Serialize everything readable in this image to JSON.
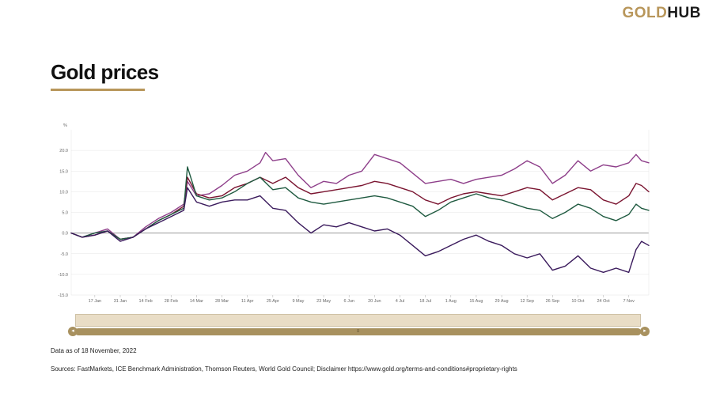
{
  "header": {
    "brand_gold": "GOLD",
    "brand_hub": "HUB",
    "title": "Gold prices"
  },
  "footer": {
    "as_of": "Data as of 18 November, 2022",
    "sources": "Sources: FastMarkets, ICE Benchmark Administration, Thomson Reuters, World Gold Council; Disclaimer https://www.gold.org/terms-and-conditions#proprietary-rights"
  },
  "colors": {
    "accent": "#b8965a",
    "series": [
      "#8e3f8a",
      "#7a1430",
      "#1f5a40",
      "#3a1a5c"
    ]
  },
  "chart_data": {
    "type": "line",
    "ylabel": "%",
    "ylim": [
      -15,
      25
    ],
    "yticks": [
      -15,
      -10,
      -5,
      0,
      5,
      10,
      15,
      20
    ],
    "ytick_labels": [
      "-15.0",
      "-10.0",
      "-5.0",
      "0.0",
      "5.0",
      "10.0",
      "15.0",
      "20.0"
    ],
    "date_range": [
      "2022-01-04",
      "2022-11-18"
    ],
    "xticks": [
      "2022-01-17",
      "2022-01-31",
      "2022-02-14",
      "2022-02-28",
      "2022-03-14",
      "2022-03-28",
      "2022-04-11",
      "2022-04-25",
      "2022-05-09",
      "2022-05-23",
      "2022-06-06",
      "2022-06-20",
      "2022-07-04",
      "2022-07-18",
      "2022-08-01",
      "2022-08-15",
      "2022-08-29",
      "2022-09-12",
      "2022-09-26",
      "2022-10-10",
      "2022-10-24",
      "2022-11-07"
    ],
    "xtick_labels": [
      "17 Jan",
      "31 Jan",
      "14 Feb",
      "28 Feb",
      "14 Mar",
      "28 Mar",
      "11 Apr",
      "25 Apr",
      "9 May",
      "23 May",
      "6 Jun",
      "20 Jun",
      "4 Jul",
      "18 Jul",
      "1 Aug",
      "15 Aug",
      "29 Aug",
      "12 Sep",
      "26 Sep",
      "10 Oct",
      "24 Oct",
      "7 Nov"
    ],
    "grid": true,
    "series": [
      {
        "color": "#8e3f8a",
        "points": [
          [
            "2022-01-04",
            0
          ],
          [
            "2022-01-10",
            -1
          ],
          [
            "2022-01-17",
            0
          ],
          [
            "2022-01-24",
            1
          ],
          [
            "2022-01-31",
            -1.5
          ],
          [
            "2022-02-07",
            -1
          ],
          [
            "2022-02-14",
            1.5
          ],
          [
            "2022-02-21",
            3.5
          ],
          [
            "2022-02-28",
            5
          ],
          [
            "2022-03-07",
            7
          ],
          [
            "2022-03-09",
            12.5
          ],
          [
            "2022-03-14",
            9
          ],
          [
            "2022-03-21",
            9.5
          ],
          [
            "2022-03-28",
            11.5
          ],
          [
            "2022-04-04",
            14
          ],
          [
            "2022-04-11",
            15
          ],
          [
            "2022-04-18",
            17
          ],
          [
            "2022-04-21",
            19.5
          ],
          [
            "2022-04-25",
            17.5
          ],
          [
            "2022-05-02",
            18
          ],
          [
            "2022-05-09",
            14
          ],
          [
            "2022-05-16",
            11
          ],
          [
            "2022-05-23",
            12.5
          ],
          [
            "2022-05-30",
            12
          ],
          [
            "2022-06-06",
            14
          ],
          [
            "2022-06-13",
            15
          ],
          [
            "2022-06-20",
            19
          ],
          [
            "2022-06-27",
            18
          ],
          [
            "2022-07-04",
            17
          ],
          [
            "2022-07-11",
            14.5
          ],
          [
            "2022-07-18",
            12
          ],
          [
            "2022-07-25",
            12.5
          ],
          [
            "2022-08-01",
            13
          ],
          [
            "2022-08-08",
            12
          ],
          [
            "2022-08-15",
            13
          ],
          [
            "2022-08-22",
            13.5
          ],
          [
            "2022-08-29",
            14
          ],
          [
            "2022-09-05",
            15.5
          ],
          [
            "2022-09-12",
            17.5
          ],
          [
            "2022-09-19",
            16
          ],
          [
            "2022-09-26",
            12
          ],
          [
            "2022-10-03",
            14
          ],
          [
            "2022-10-10",
            17.5
          ],
          [
            "2022-10-17",
            15
          ],
          [
            "2022-10-24",
            16.5
          ],
          [
            "2022-10-31",
            16
          ],
          [
            "2022-11-07",
            17
          ],
          [
            "2022-11-11",
            19
          ],
          [
            "2022-11-14",
            17.5
          ],
          [
            "2022-11-18",
            17
          ]
        ]
      },
      {
        "color": "#7a1430",
        "points": [
          [
            "2022-01-04",
            0
          ],
          [
            "2022-01-10",
            -1
          ],
          [
            "2022-01-17",
            -0.5
          ],
          [
            "2022-01-24",
            0.5
          ],
          [
            "2022-01-31",
            -1.5
          ],
          [
            "2022-02-07",
            -1
          ],
          [
            "2022-02-14",
            1
          ],
          [
            "2022-02-21",
            3
          ],
          [
            "2022-02-28",
            4.5
          ],
          [
            "2022-03-07",
            6.5
          ],
          [
            "2022-03-09",
            13.5
          ],
          [
            "2022-03-14",
            9.5
          ],
          [
            "2022-03-21",
            8.5
          ],
          [
            "2022-03-28",
            9
          ],
          [
            "2022-04-04",
            11
          ],
          [
            "2022-04-11",
            12
          ],
          [
            "2022-04-18",
            13.5
          ],
          [
            "2022-04-25",
            12
          ],
          [
            "2022-05-02",
            13.5
          ],
          [
            "2022-05-09",
            11
          ],
          [
            "2022-05-16",
            9.5
          ],
          [
            "2022-05-23",
            10
          ],
          [
            "2022-05-30",
            10.5
          ],
          [
            "2022-06-06",
            11
          ],
          [
            "2022-06-13",
            11.5
          ],
          [
            "2022-06-20",
            12.5
          ],
          [
            "2022-06-27",
            12
          ],
          [
            "2022-07-04",
            11
          ],
          [
            "2022-07-11",
            10
          ],
          [
            "2022-07-18",
            8
          ],
          [
            "2022-07-25",
            7
          ],
          [
            "2022-08-01",
            8.5
          ],
          [
            "2022-08-08",
            9.5
          ],
          [
            "2022-08-15",
            10
          ],
          [
            "2022-08-22",
            9.5
          ],
          [
            "2022-08-29",
            9
          ],
          [
            "2022-09-05",
            10
          ],
          [
            "2022-09-12",
            11
          ],
          [
            "2022-09-19",
            10.5
          ],
          [
            "2022-09-26",
            8
          ],
          [
            "2022-10-03",
            9.5
          ],
          [
            "2022-10-10",
            11
          ],
          [
            "2022-10-17",
            10.5
          ],
          [
            "2022-10-24",
            8
          ],
          [
            "2022-10-31",
            7
          ],
          [
            "2022-11-07",
            9
          ],
          [
            "2022-11-11",
            12
          ],
          [
            "2022-11-14",
            11.5
          ],
          [
            "2022-11-18",
            10
          ]
        ]
      },
      {
        "color": "#1f5a40",
        "points": [
          [
            "2022-01-04",
            0
          ],
          [
            "2022-01-10",
            -1
          ],
          [
            "2022-01-17",
            0
          ],
          [
            "2022-01-24",
            0.5
          ],
          [
            "2022-01-31",
            -1.5
          ],
          [
            "2022-02-07",
            -1
          ],
          [
            "2022-02-14",
            1
          ],
          [
            "2022-02-21",
            3
          ],
          [
            "2022-02-28",
            4.5
          ],
          [
            "2022-03-07",
            6
          ],
          [
            "2022-03-09",
            16
          ],
          [
            "2022-03-14",
            9
          ],
          [
            "2022-03-21",
            8
          ],
          [
            "2022-03-28",
            8.5
          ],
          [
            "2022-04-04",
            10
          ],
          [
            "2022-04-11",
            12
          ],
          [
            "2022-04-18",
            13.5
          ],
          [
            "2022-04-25",
            10.5
          ],
          [
            "2022-05-02",
            11
          ],
          [
            "2022-05-09",
            8.5
          ],
          [
            "2022-05-16",
            7.5
          ],
          [
            "2022-05-23",
            7
          ],
          [
            "2022-05-30",
            7.5
          ],
          [
            "2022-06-06",
            8
          ],
          [
            "2022-06-13",
            8.5
          ],
          [
            "2022-06-20",
            9
          ],
          [
            "2022-06-27",
            8.5
          ],
          [
            "2022-07-04",
            7.5
          ],
          [
            "2022-07-11",
            6.5
          ],
          [
            "2022-07-18",
            4
          ],
          [
            "2022-07-25",
            5.5
          ],
          [
            "2022-08-01",
            7.5
          ],
          [
            "2022-08-08",
            8.5
          ],
          [
            "2022-08-15",
            9.5
          ],
          [
            "2022-08-22",
            8.5
          ],
          [
            "2022-08-29",
            8
          ],
          [
            "2022-09-05",
            7
          ],
          [
            "2022-09-12",
            6
          ],
          [
            "2022-09-19",
            5.5
          ],
          [
            "2022-09-26",
            3.5
          ],
          [
            "2022-10-03",
            5
          ],
          [
            "2022-10-10",
            7
          ],
          [
            "2022-10-17",
            6
          ],
          [
            "2022-10-24",
            4
          ],
          [
            "2022-10-31",
            3
          ],
          [
            "2022-11-07",
            4.5
          ],
          [
            "2022-11-11",
            7
          ],
          [
            "2022-11-14",
            6
          ],
          [
            "2022-11-18",
            5.5
          ]
        ]
      },
      {
        "color": "#3a1a5c",
        "points": [
          [
            "2022-01-04",
            0
          ],
          [
            "2022-01-10",
            -1
          ],
          [
            "2022-01-17",
            -0.5
          ],
          [
            "2022-01-24",
            0.5
          ],
          [
            "2022-01-31",
            -2
          ],
          [
            "2022-02-07",
            -1
          ],
          [
            "2022-02-14",
            1
          ],
          [
            "2022-02-21",
            2.5
          ],
          [
            "2022-02-28",
            4
          ],
          [
            "2022-03-07",
            5.5
          ],
          [
            "2022-03-09",
            11
          ],
          [
            "2022-03-14",
            7.5
          ],
          [
            "2022-03-21",
            6.5
          ],
          [
            "2022-03-28",
            7.5
          ],
          [
            "2022-04-04",
            8
          ],
          [
            "2022-04-11",
            8
          ],
          [
            "2022-04-18",
            9
          ],
          [
            "2022-04-25",
            6
          ],
          [
            "2022-05-02",
            5.5
          ],
          [
            "2022-05-09",
            2.5
          ],
          [
            "2022-05-16",
            0
          ],
          [
            "2022-05-23",
            2
          ],
          [
            "2022-05-30",
            1.5
          ],
          [
            "2022-06-06",
            2.5
          ],
          [
            "2022-06-13",
            1.5
          ],
          [
            "2022-06-20",
            0.5
          ],
          [
            "2022-06-27",
            1
          ],
          [
            "2022-07-04",
            -0.5
          ],
          [
            "2022-07-11",
            -3
          ],
          [
            "2022-07-18",
            -5.5
          ],
          [
            "2022-07-25",
            -4.5
          ],
          [
            "2022-08-01",
            -3
          ],
          [
            "2022-08-08",
            -1.5
          ],
          [
            "2022-08-15",
            -0.5
          ],
          [
            "2022-08-22",
            -2
          ],
          [
            "2022-08-29",
            -3
          ],
          [
            "2022-09-05",
            -5
          ],
          [
            "2022-09-12",
            -6
          ],
          [
            "2022-09-19",
            -5
          ],
          [
            "2022-09-26",
            -9
          ],
          [
            "2022-10-03",
            -8
          ],
          [
            "2022-10-10",
            -5.5
          ],
          [
            "2022-10-17",
            -8.5
          ],
          [
            "2022-10-24",
            -9.5
          ],
          [
            "2022-10-31",
            -8.5
          ],
          [
            "2022-11-07",
            -9.5
          ],
          [
            "2022-11-11",
            -4
          ],
          [
            "2022-11-14",
            -2
          ],
          [
            "2022-11-18",
            -3
          ]
        ]
      }
    ]
  }
}
